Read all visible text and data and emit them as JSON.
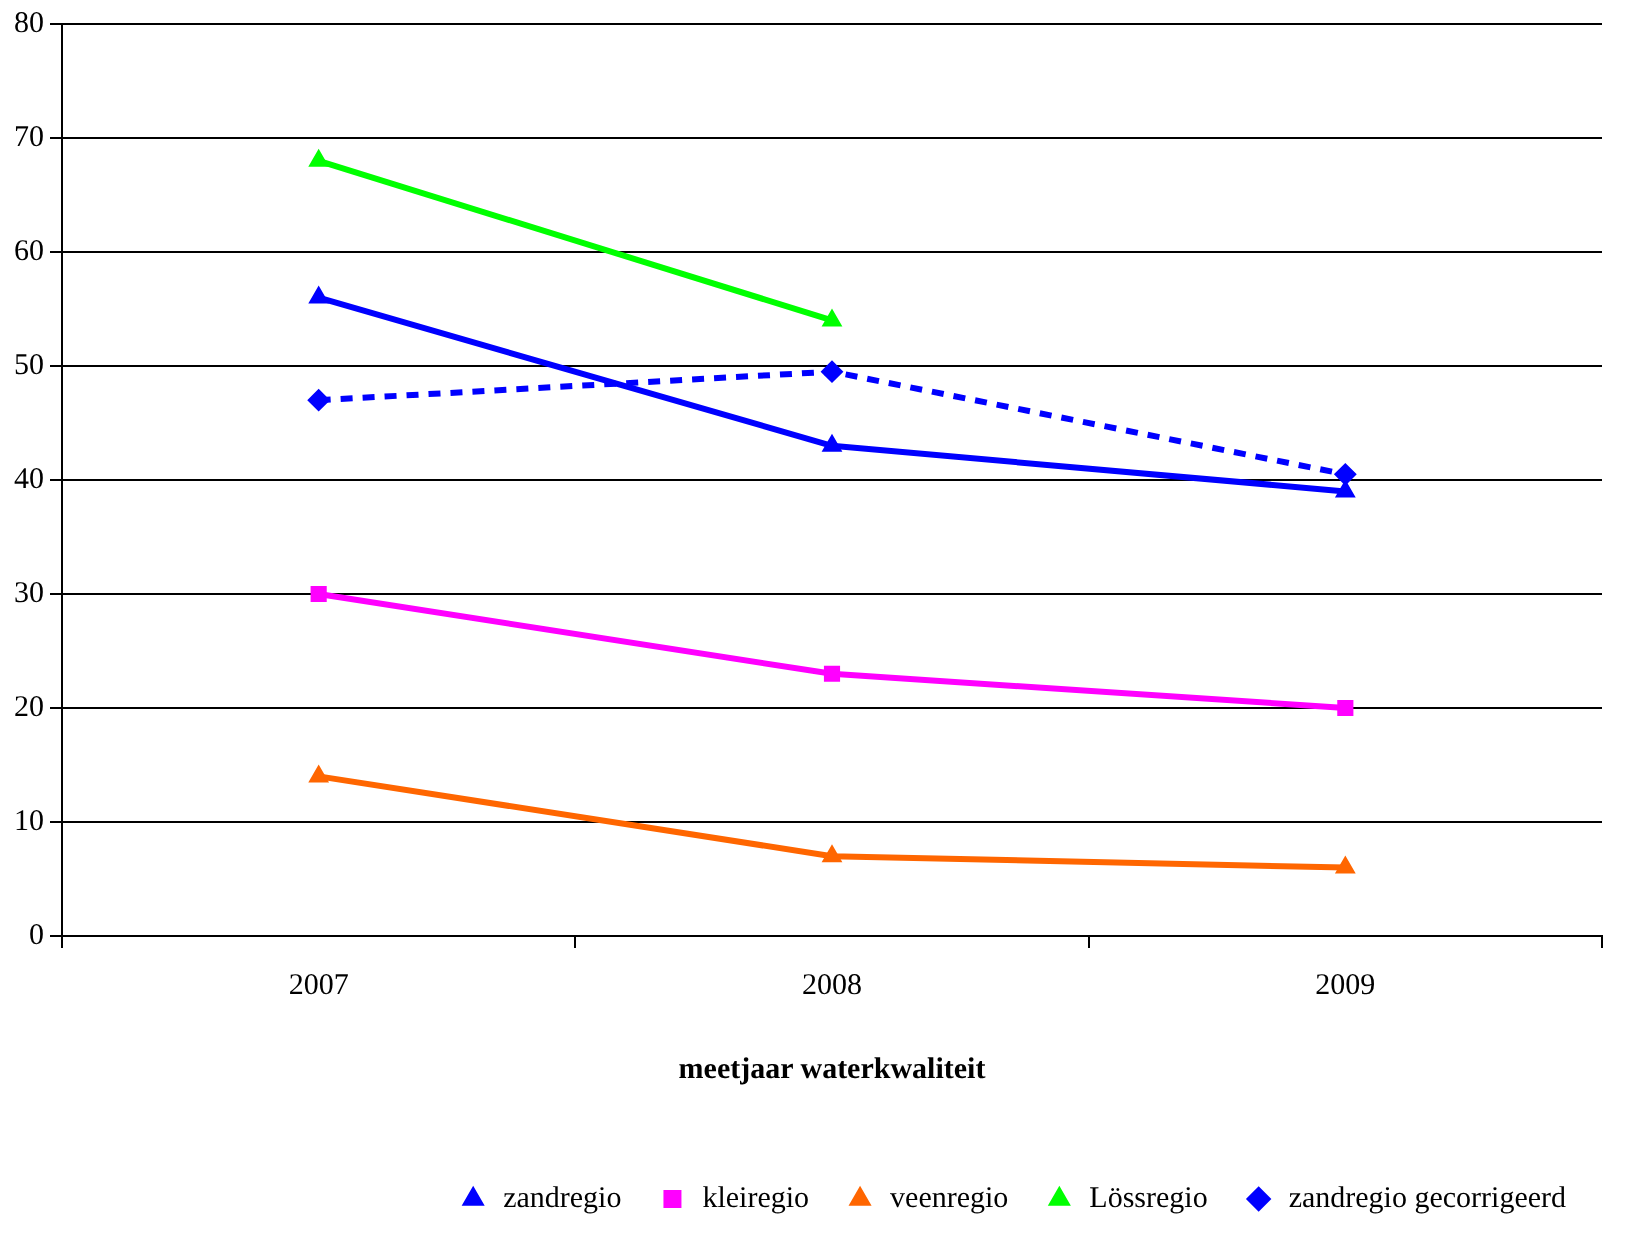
{
  "chart_data": {
    "type": "line",
    "xlabel": "meetjaar waterkwaliteit",
    "categories": [
      "2007",
      "2008",
      "2009"
    ],
    "series": [
      {
        "name": "zandregio",
        "color": "#0000ff",
        "marker": "triangle",
        "line_style": "solid",
        "values": [
          56,
          43,
          39
        ]
      },
      {
        "name": "kleiregio",
        "color": "#ff00ff",
        "marker": "square",
        "line_style": "solid",
        "values": [
          30,
          23,
          20
        ]
      },
      {
        "name": "veenregio",
        "color": "#ff6600",
        "marker": "triangle",
        "line_style": "solid",
        "values": [
          14,
          7,
          6
        ]
      },
      {
        "name": "Lössregio",
        "color": "#00ff00",
        "marker": "triangle",
        "line_style": "solid",
        "values": [
          68,
          54,
          null
        ]
      },
      {
        "name": "zandregio gecorrigeerd",
        "color": "#0000ff",
        "marker": "diamond",
        "line_style": "dashed",
        "values": [
          47,
          49.5,
          40.5
        ]
      }
    ],
    "ylim": [
      0,
      80
    ],
    "yticks": [
      0,
      10,
      20,
      30,
      40,
      50,
      60,
      70,
      80
    ],
    "grid": "y",
    "legend": "bottom"
  }
}
